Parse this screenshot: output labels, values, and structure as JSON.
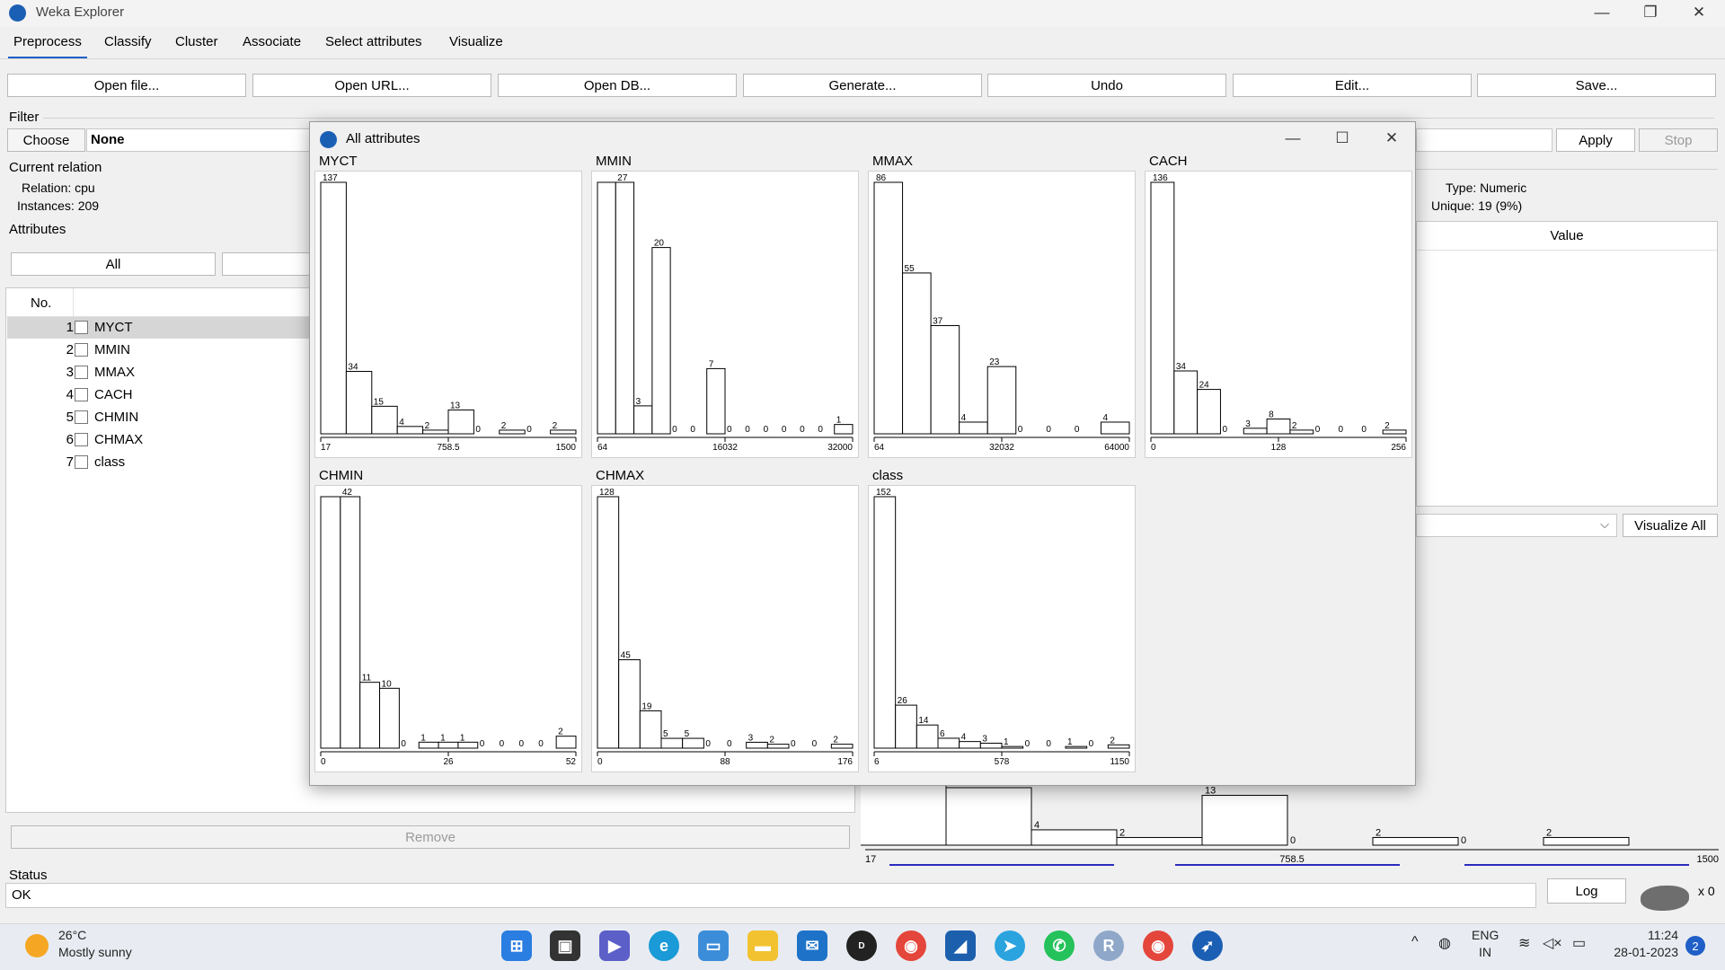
{
  "window": {
    "title": "Weka Explorer"
  },
  "tabs": [
    "Preprocess",
    "Classify",
    "Cluster",
    "Associate",
    "Select attributes",
    "Visualize"
  ],
  "toolbar": [
    "Open file...",
    "Open URL...",
    "Open DB...",
    "Generate...",
    "Undo",
    "Edit...",
    "Save..."
  ],
  "filter": {
    "label": "Filter",
    "choose": "Choose",
    "value": "None",
    "apply": "Apply",
    "stop": "Stop"
  },
  "relation": {
    "header": "Current relation",
    "relation": "Relation: cpu",
    "instances": "Instances: 209"
  },
  "selected_attr": {
    "type": "Type: Numeric",
    "unique": "Unique: 19 (9%)",
    "value_header": "Value"
  },
  "attributes": {
    "header": "Attributes",
    "all_button": "All",
    "col_no": "No.",
    "items": [
      {
        "no": "1",
        "name": "MYCT"
      },
      {
        "no": "2",
        "name": "MMIN"
      },
      {
        "no": "3",
        "name": "MMAX"
      },
      {
        "no": "4",
        "name": "CACH"
      },
      {
        "no": "5",
        "name": "CHMIN"
      },
      {
        "no": "6",
        "name": "CHMAX"
      },
      {
        "no": "7",
        "name": "class"
      }
    ],
    "remove": "Remove"
  },
  "visualize_all": "Visualize All",
  "status": {
    "header": "Status",
    "text": "OK",
    "log": "Log",
    "count": "x 0"
  },
  "popup": {
    "title": "All attributes"
  },
  "chart_data": [
    {
      "type": "bar",
      "title": "MYCT",
      "values": [
        137,
        34,
        15,
        4,
        2,
        13,
        0,
        2,
        0,
        2
      ],
      "ticks": [
        "17",
        "758.5",
        "1500"
      ]
    },
    {
      "type": "bar",
      "title": "MMIN",
      "values": [
        null,
        27,
        3,
        20,
        0,
        0,
        7,
        0,
        0,
        0,
        0,
        0,
        0,
        1
      ],
      "ticks": [
        "64",
        "16032",
        "32000"
      ]
    },
    {
      "type": "bar",
      "title": "MMAX",
      "values": [
        86,
        55,
        37,
        4,
        23,
        0,
        0,
        0,
        4
      ],
      "ticks": [
        "64",
        "32032",
        "64000"
      ]
    },
    {
      "type": "bar",
      "title": "CACH",
      "values": [
        136,
        34,
        24,
        0,
        3,
        8,
        2,
        0,
        0,
        0,
        2
      ],
      "ticks": [
        "0",
        "128",
        "256"
      ]
    },
    {
      "type": "bar",
      "title": "CHMIN",
      "values": [
        null,
        42,
        11,
        10,
        0,
        1,
        1,
        1,
        0,
        0,
        0,
        0,
        2
      ],
      "ticks": [
        "0",
        "26",
        "52"
      ]
    },
    {
      "type": "bar",
      "title": "CHMAX",
      "values": [
        128,
        45,
        19,
        5,
        5,
        0,
        0,
        3,
        2,
        0,
        0,
        2
      ],
      "ticks": [
        "0",
        "88",
        "176"
      ]
    },
    {
      "type": "bar",
      "title": "class",
      "values": [
        152,
        26,
        14,
        6,
        4,
        3,
        1,
        0,
        0,
        1,
        0,
        2
      ],
      "ticks": [
        "6",
        "578",
        "1150"
      ]
    }
  ],
  "behind_chart": {
    "values": [
      15,
      4,
      2,
      13,
      0,
      2,
      0,
      2
    ],
    "ticks": [
      "17",
      "758.5",
      "1500"
    ]
  },
  "taskbar": {
    "weather_temp": "26°C",
    "weather_desc": "Mostly sunny",
    "lang1": "ENG",
    "lang2": "IN",
    "time": "11:24",
    "date": "28-01-2023",
    "notif": "2"
  }
}
